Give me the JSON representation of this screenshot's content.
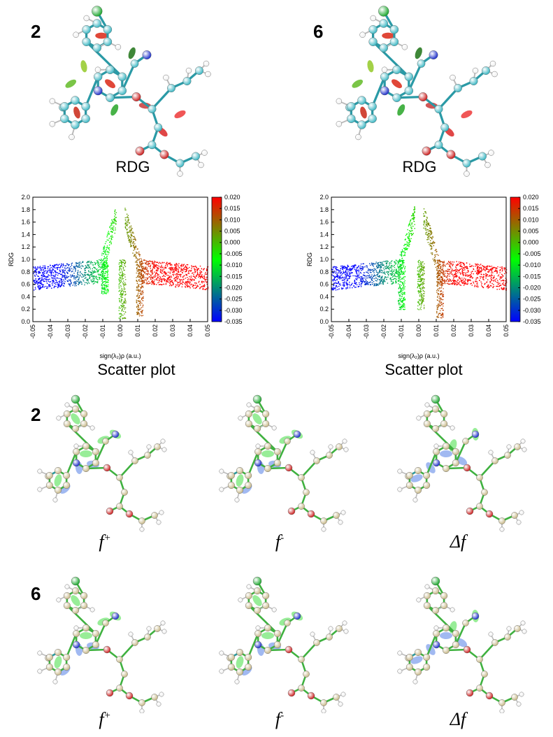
{
  "top_panels": [
    {
      "id": "2",
      "rdg_caption": "RDG",
      "scatter_caption": "Scatter plot"
    },
    {
      "id": "6",
      "rdg_caption": "RDG",
      "scatter_caption": "Scatter plot"
    }
  ],
  "fukui_rows": [
    {
      "id": "2",
      "labels": [
        {
          "sym": "f",
          "sup": "+"
        },
        {
          "sym": "f",
          "sup": "-"
        },
        {
          "sym": "Δf",
          "sup": ""
        }
      ]
    },
    {
      "id": "6",
      "labels": [
        {
          "sym": "f",
          "sup": "+"
        },
        {
          "sym": "f",
          "sup": "-"
        },
        {
          "sym": "Δf",
          "sup": ""
        }
      ]
    }
  ],
  "colors": {
    "carbon_rdg": "#3fb8c4",
    "carbon_fukui": "#c8b98a",
    "oxygen": "#cc2222",
    "nitrogen": "#2233cc",
    "chlorine": "#22aa33",
    "hydrogen": "#f0f0f0",
    "iso_green": "#7ee87e",
    "iso_blue": "#8aa8ee"
  },
  "chart_data": [
    {
      "type": "scatter",
      "panel": "2",
      "xlabel": "sign(λ₂)ρ (a.u.)",
      "ylabel": "RDG",
      "xlim": [
        -0.05,
        0.05
      ],
      "ylim": [
        0.0,
        2.0
      ],
      "xticks": [
        "-0.05",
        "-0.04",
        "-0.03",
        "-0.02",
        "-0.01",
        "0.00",
        "0.01",
        "0.02",
        "0.03",
        "0.04",
        "0.05"
      ],
      "yticks": [
        "0.0",
        "0.2",
        "0.4",
        "0.6",
        "0.8",
        "1.0",
        "1.2",
        "1.4",
        "1.6",
        "1.8",
        "2.0"
      ],
      "colorbar": {
        "min": -0.035,
        "max": 0.02,
        "ticks": [
          "0.020",
          "0.015",
          "0.010",
          "0.005",
          "0.000",
          "-0.005",
          "-0.010",
          "-0.015",
          "-0.020",
          "-0.025",
          "-0.030",
          "-0.035"
        ]
      },
      "spikes": [
        {
          "x": -0.009,
          "min_rdg": 0.45
        },
        {
          "x": 0.001,
          "min_rdg": 0.05
        },
        {
          "x": 0.011,
          "min_rdg": 0.1
        }
      ]
    },
    {
      "type": "scatter",
      "panel": "6",
      "xlabel": "sign(λ₂)ρ (a.u.)",
      "ylabel": "RDG",
      "xlim": [
        -0.05,
        0.05
      ],
      "ylim": [
        0.0,
        2.0
      ],
      "xticks": [
        "-0.05",
        "-0.04",
        "-0.03",
        "-0.02",
        "-0.01",
        "0.00",
        "0.01",
        "0.02",
        "0.03",
        "0.04",
        "0.05"
      ],
      "yticks": [
        "0.0",
        "0.2",
        "0.4",
        "0.6",
        "0.8",
        "1.0",
        "1.2",
        "1.4",
        "1.6",
        "1.8",
        "2.0"
      ],
      "colorbar": {
        "min": -0.035,
        "max": 0.02,
        "ticks": [
          "0.020",
          "0.015",
          "0.010",
          "0.005",
          "0.000",
          "-0.005",
          "-0.010",
          "-0.015",
          "-0.020",
          "-0.025",
          "-0.030",
          "-0.035"
        ]
      },
      "spikes": [
        {
          "x": -0.01,
          "min_rdg": 0.2
        },
        {
          "x": 0.001,
          "min_rdg": 0.2
        },
        {
          "x": 0.012,
          "min_rdg": 0.05
        }
      ]
    }
  ]
}
